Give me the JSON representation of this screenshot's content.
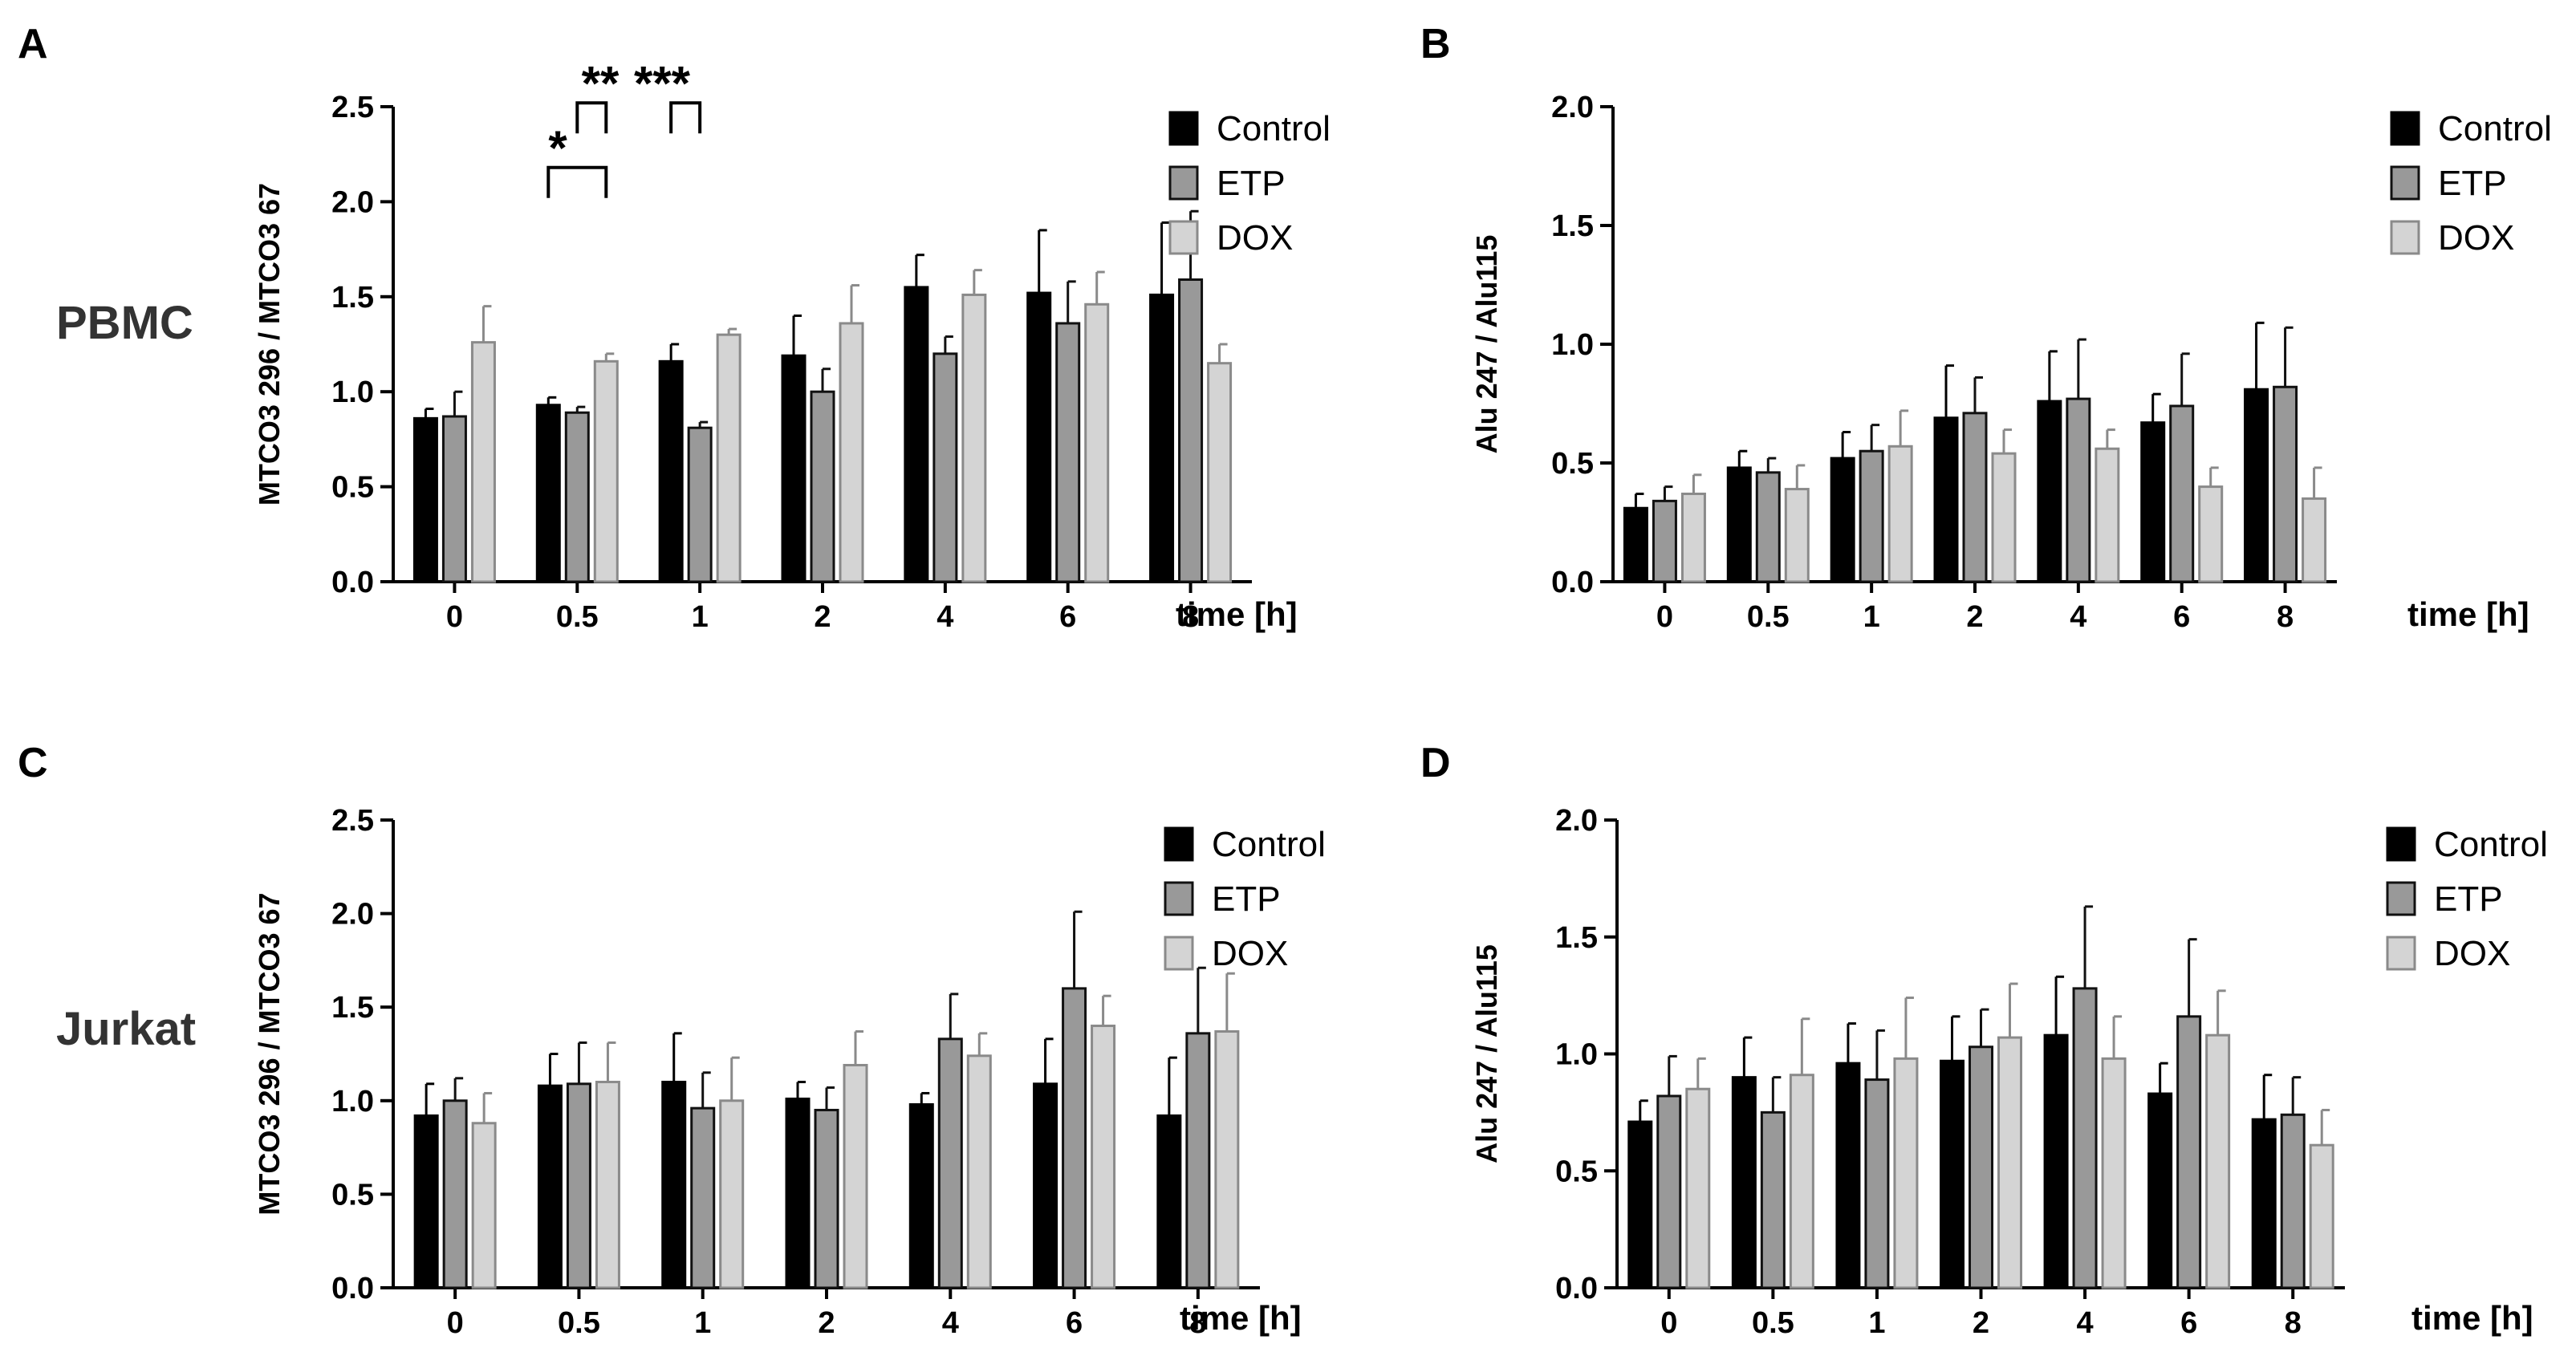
{
  "row_labels": [
    "PBMC",
    "Jurkat"
  ],
  "chart_data": [
    {
      "panel": "A",
      "type": "bar",
      "categories": [
        "0",
        "0.5",
        "1",
        "2",
        "4",
        "6",
        "8"
      ],
      "xlabel": "time [h]",
      "ylabel": "MTCO3 296 / MTCO3 67",
      "ylim": [
        0,
        2.5
      ],
      "yticks": [
        "0.0",
        "0.5",
        "1.0",
        "1.5",
        "2.0",
        "2.5"
      ],
      "legend_position": "right",
      "series": [
        {
          "name": "Control",
          "color": "#000000",
          "values": [
            0.86,
            0.93,
            1.16,
            1.19,
            1.55,
            1.52,
            1.51
          ],
          "errors": [
            0.05,
            0.04,
            0.09,
            0.21,
            0.17,
            0.33,
            0.38
          ]
        },
        {
          "name": "ETP",
          "color": "#999999",
          "values": [
            0.87,
            0.89,
            0.81,
            1.0,
            1.2,
            1.36,
            1.59
          ],
          "errors": [
            0.13,
            0.03,
            0.03,
            0.12,
            0.09,
            0.22,
            0.36
          ]
        },
        {
          "name": "DOX",
          "color": "#d4d4d4",
          "values": [
            1.26,
            1.16,
            1.3,
            1.36,
            1.51,
            1.46,
            1.15
          ],
          "errors": [
            0.19,
            0.04,
            0.03,
            0.2,
            0.13,
            0.17,
            0.1
          ]
        }
      ],
      "significance": [
        {
          "label": "*",
          "category": "0.5",
          "from": "Control",
          "to": "DOX",
          "level": 2.18
        },
        {
          "label": "**",
          "category": "0.5",
          "from": "ETP",
          "to": "DOX",
          "level": 2.52
        },
        {
          "label": "***",
          "category": "1",
          "from": "Control",
          "to": "ETP",
          "level": 2.52
        }
      ]
    },
    {
      "panel": "B",
      "type": "bar",
      "categories": [
        "0",
        "0.5",
        "1",
        "2",
        "4",
        "6",
        "8"
      ],
      "xlabel": "time [h]",
      "ylabel": "Alu 247 / Alu115",
      "ylim": [
        0,
        2.0
      ],
      "yticks": [
        "0.0",
        "0.5",
        "1.0",
        "1.5",
        "2.0"
      ],
      "legend_position": "right",
      "series": [
        {
          "name": "Control",
          "color": "#000000",
          "values": [
            0.31,
            0.48,
            0.52,
            0.69,
            0.76,
            0.67,
            0.81
          ],
          "errors": [
            0.06,
            0.07,
            0.11,
            0.22,
            0.21,
            0.12,
            0.28
          ]
        },
        {
          "name": "ETP",
          "color": "#999999",
          "values": [
            0.34,
            0.46,
            0.55,
            0.71,
            0.77,
            0.74,
            0.82
          ],
          "errors": [
            0.06,
            0.06,
            0.11,
            0.15,
            0.25,
            0.22,
            0.25
          ]
        },
        {
          "name": "DOX",
          "color": "#d4d4d4",
          "values": [
            0.37,
            0.39,
            0.57,
            0.54,
            0.56,
            0.4,
            0.35
          ],
          "errors": [
            0.08,
            0.1,
            0.15,
            0.1,
            0.08,
            0.08,
            0.13
          ]
        }
      ]
    },
    {
      "panel": "C",
      "type": "bar",
      "categories": [
        "0",
        "0.5",
        "1",
        "2",
        "4",
        "6",
        "8"
      ],
      "xlabel": "time [h]",
      "ylabel": "MTCO3 296 / MTCO3 67",
      "ylim": [
        0,
        2.5
      ],
      "yticks": [
        "0.0",
        "0.5",
        "1.0",
        "1.5",
        "2.0",
        "2.5"
      ],
      "legend_position": "right",
      "series": [
        {
          "name": "Control",
          "color": "#000000",
          "values": [
            0.92,
            1.08,
            1.1,
            1.01,
            0.98,
            1.09,
            0.92
          ],
          "errors": [
            0.17,
            0.17,
            0.26,
            0.09,
            0.06,
            0.24,
            0.31
          ]
        },
        {
          "name": "ETP",
          "color": "#999999",
          "values": [
            1.0,
            1.09,
            0.96,
            0.95,
            1.33,
            1.6,
            1.36
          ],
          "errors": [
            0.12,
            0.22,
            0.19,
            0.12,
            0.24,
            0.41,
            0.35
          ]
        },
        {
          "name": "DOX",
          "color": "#d4d4d4",
          "values": [
            0.88,
            1.1,
            1.0,
            1.19,
            1.24,
            1.4,
            1.37
          ],
          "errors": [
            0.16,
            0.21,
            0.23,
            0.18,
            0.12,
            0.16,
            0.31
          ]
        }
      ]
    },
    {
      "panel": "D",
      "type": "bar",
      "categories": [
        "0",
        "0.5",
        "1",
        "2",
        "4",
        "6",
        "8"
      ],
      "xlabel": "time [h]",
      "ylabel": "Alu 247 / Alu115",
      "ylim": [
        0,
        2.0
      ],
      "yticks": [
        "0.0",
        "0.5",
        "1.0",
        "1.5",
        "2.0"
      ],
      "legend_position": "right",
      "series": [
        {
          "name": "Control",
          "color": "#000000",
          "values": [
            0.71,
            0.9,
            0.96,
            0.97,
            1.08,
            0.83,
            0.72
          ],
          "errors": [
            0.09,
            0.17,
            0.17,
            0.19,
            0.25,
            0.13,
            0.19
          ]
        },
        {
          "name": "ETP",
          "color": "#999999",
          "values": [
            0.82,
            0.75,
            0.89,
            1.03,
            1.28,
            1.16,
            0.74
          ],
          "errors": [
            0.17,
            0.15,
            0.21,
            0.16,
            0.35,
            0.33,
            0.16
          ]
        },
        {
          "name": "DOX",
          "color": "#d4d4d4",
          "values": [
            0.85,
            0.91,
            0.98,
            1.07,
            0.98,
            1.08,
            0.61
          ],
          "errors": [
            0.13,
            0.24,
            0.26,
            0.23,
            0.18,
            0.19,
            0.15
          ]
        }
      ]
    }
  ]
}
